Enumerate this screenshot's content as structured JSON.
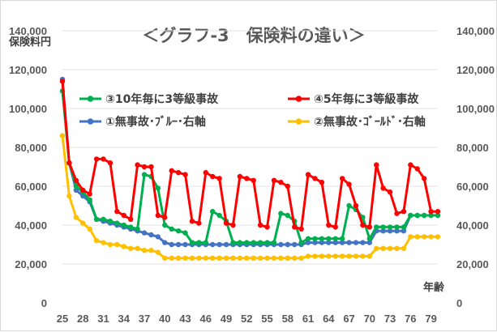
{
  "chart_data": {
    "type": "line",
    "title": "＜グラフ-3　保険料の違い＞",
    "ylabel_left": "保険料円",
    "xlabel": "年齢",
    "ylim": [
      0,
      140000
    ],
    "y_ticks": [
      "0",
      "20,000",
      "40,000",
      "60,000",
      "80,000",
      "100,000",
      "120,000",
      "140,000"
    ],
    "y2_ticks": [
      "0",
      "20,000",
      "40,000",
      "60,000",
      "80,000",
      "100,000",
      "120,000",
      "140,000"
    ],
    "x_tick_labels": [
      "25",
      "28",
      "31",
      "34",
      "37",
      "40",
      "43",
      "46",
      "49",
      "52",
      "55",
      "58",
      "61",
      "64",
      "67",
      "70",
      "73",
      "76",
      "79"
    ],
    "x": [
      25,
      26,
      27,
      28,
      29,
      30,
      31,
      32,
      33,
      34,
      35,
      36,
      37,
      38,
      39,
      40,
      41,
      42,
      43,
      44,
      45,
      46,
      47,
      48,
      49,
      50,
      51,
      52,
      53,
      54,
      55,
      56,
      57,
      58,
      59,
      60,
      61,
      62,
      63,
      64,
      65,
      66,
      67,
      68,
      69,
      70,
      71,
      72,
      73,
      74,
      75,
      76,
      77,
      78,
      79,
      80
    ],
    "legend_position": "inside-top",
    "series": [
      {
        "name": "③10年毎に3等級事故",
        "color": "#00b050",
        "axis": "left",
        "values": [
          109000,
          72000,
          60000,
          57000,
          53000,
          43000,
          43000,
          42000,
          41000,
          40000,
          39000,
          38000,
          66000,
          65000,
          59000,
          40000,
          38000,
          37000,
          36000,
          31000,
          31000,
          31000,
          47000,
          45000,
          42000,
          31000,
          31000,
          31000,
          31000,
          31000,
          31000,
          31000,
          46000,
          45000,
          42000,
          31000,
          33000,
          33000,
          33000,
          33000,
          33000,
          33000,
          50000,
          48000,
          44000,
          33000,
          39000,
          39000,
          39000,
          39000,
          39000,
          45000,
          45000,
          45000,
          45000,
          45000
        ]
      },
      {
        "name": "④5年毎に3等級事故",
        "color": "#ff0000",
        "axis": "left",
        "values": [
          114000,
          72000,
          63000,
          58000,
          56000,
          74000,
          74000,
          72000,
          47000,
          45000,
          43000,
          71000,
          70000,
          70000,
          45000,
          44000,
          68000,
          67000,
          66000,
          42000,
          41000,
          67000,
          65000,
          64000,
          41000,
          40000,
          65000,
          64000,
          63000,
          40000,
          39000,
          63000,
          62000,
          60000,
          39000,
          38000,
          66000,
          64000,
          62000,
          40000,
          39000,
          64000,
          61000,
          50000,
          40000,
          39000,
          71000,
          59000,
          57000,
          46000,
          47000,
          71000,
          69000,
          64000,
          47000,
          47000
        ]
      },
      {
        "name": "①無事故･ﾌﾞﾙｰ･右軸",
        "color": "#4472c4",
        "axis": "right",
        "values": [
          115000,
          72000,
          58000,
          55000,
          52000,
          43000,
          42000,
          41000,
          40000,
          39000,
          38000,
          37000,
          36000,
          35000,
          34000,
          31000,
          30000,
          30000,
          30000,
          30000,
          30000,
          30000,
          30000,
          30000,
          30000,
          30000,
          30000,
          30000,
          30000,
          30000,
          30000,
          30000,
          30000,
          30000,
          30000,
          30000,
          31000,
          31000,
          31000,
          31000,
          31000,
          31000,
          31000,
          31000,
          31000,
          31000,
          37000,
          37000,
          37000,
          37000,
          37000,
          45000,
          45000,
          45000,
          45000,
          45000
        ]
      },
      {
        "name": "②無事故･ｺﾞｰﾙﾄﾞ･右軸",
        "color": "#ffc000",
        "axis": "right",
        "values": [
          86000,
          55000,
          44000,
          41000,
          38000,
          32000,
          31000,
          30000,
          30000,
          29000,
          28000,
          28000,
          27000,
          27000,
          26000,
          23000,
          23000,
          23000,
          23000,
          23000,
          23000,
          23000,
          23000,
          23000,
          23000,
          23000,
          23000,
          23000,
          23000,
          23000,
          23000,
          23000,
          23000,
          23000,
          23000,
          23000,
          24000,
          24000,
          24000,
          24000,
          24000,
          24000,
          24000,
          24000,
          24000,
          24000,
          28000,
          28000,
          28000,
          28000,
          28000,
          34000,
          34000,
          34000,
          34000,
          34000
        ]
      }
    ]
  }
}
